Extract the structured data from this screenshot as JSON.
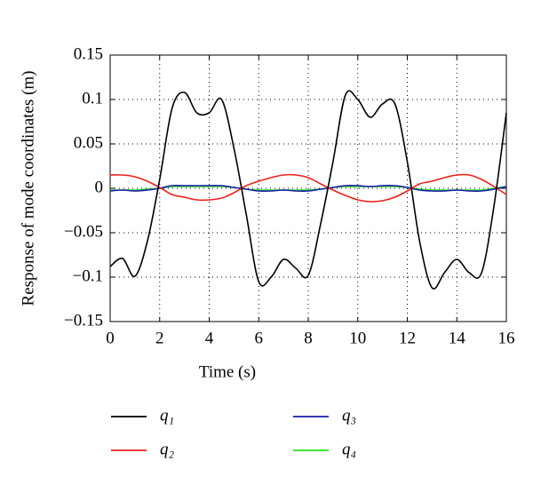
{
  "chart_data": {
    "type": "line",
    "xlabel": "Time (s)",
    "ylabel": "Response of mode coordinates (m)",
    "x": [
      0,
      0.5,
      1,
      1.5,
      2,
      2.5,
      3,
      3.5,
      4,
      4.5,
      5,
      5.5,
      6,
      6.5,
      7,
      7.5,
      8,
      8.5,
      9,
      9.5,
      10,
      10.5,
      11,
      11.5,
      12,
      12.5,
      13,
      13.5,
      14,
      14.5,
      15,
      15.5,
      16
    ],
    "series": [
      {
        "name": "q₁",
        "color": "#000000",
        "values": [
          -0.088,
          -0.079,
          -0.099,
          -0.06,
          0.01,
          0.09,
          0.108,
          0.085,
          0.085,
          0.1,
          0.045,
          -0.03,
          -0.105,
          -0.1,
          -0.08,
          -0.09,
          -0.098,
          -0.04,
          0.03,
          0.105,
          0.1,
          0.08,
          0.095,
          0.095,
          0.03,
          -0.06,
          -0.112,
          -0.095,
          -0.08,
          -0.095,
          -0.095,
          -0.02,
          0.085
        ]
      },
      {
        "name": "q₂",
        "color": "#e8201c",
        "values": [
          0.015,
          0.015,
          0.013,
          0.008,
          0.001,
          -0.007,
          -0.01,
          -0.013,
          -0.013,
          -0.011,
          -0.005,
          0.003,
          0.008,
          0.012,
          0.015,
          0.015,
          0.012,
          0.005,
          -0.002,
          -0.008,
          -0.013,
          -0.015,
          -0.014,
          -0.01,
          -0.003,
          0.005,
          0.008,
          0.012,
          0.015,
          0.015,
          0.01,
          0.002,
          -0.007
        ]
      },
      {
        "name": "q₃",
        "color": "#1a1aa6",
        "values": [
          -0.003,
          -0.002,
          -0.003,
          -0.002,
          0,
          0.003,
          0.003,
          0.003,
          0.003,
          0.003,
          0.001,
          -0.001,
          -0.003,
          -0.003,
          -0.002,
          -0.003,
          -0.003,
          -0.001,
          0.001,
          0.003,
          0.003,
          0.002,
          0.003,
          0.003,
          0.001,
          -0.002,
          -0.003,
          -0.003,
          -0.002,
          -0.003,
          -0.003,
          -0.001,
          0.002
        ]
      },
      {
        "name": "q₄",
        "color": "#22e022",
        "values": [
          -0.002,
          -0.002,
          -0.002,
          -0.001,
          0,
          0.002,
          0.002,
          0.002,
          0.002,
          0.002,
          0.001,
          -0.001,
          -0.002,
          -0.002,
          -0.002,
          -0.002,
          -0.002,
          -0.001,
          0.001,
          0.002,
          0.002,
          0.002,
          0.002,
          0.002,
          0.001,
          -0.001,
          -0.002,
          -0.002,
          -0.002,
          -0.002,
          -0.002,
          0,
          0.002
        ]
      }
    ],
    "xlim": [
      0,
      16
    ],
    "xticks": [
      0,
      2,
      4,
      6,
      8,
      10,
      12,
      14,
      16
    ],
    "ylim": [
      -0.15,
      0.15
    ],
    "yticks": [
      {
        "value": -0.15,
        "label": "−0.15"
      },
      {
        "value": -0.1,
        "label": "−0.1"
      },
      {
        "value": -0.05,
        "label": "−0.05"
      },
      0,
      0.05,
      0.1,
      0.15
    ],
    "grid": true,
    "legend": "bottom"
  }
}
